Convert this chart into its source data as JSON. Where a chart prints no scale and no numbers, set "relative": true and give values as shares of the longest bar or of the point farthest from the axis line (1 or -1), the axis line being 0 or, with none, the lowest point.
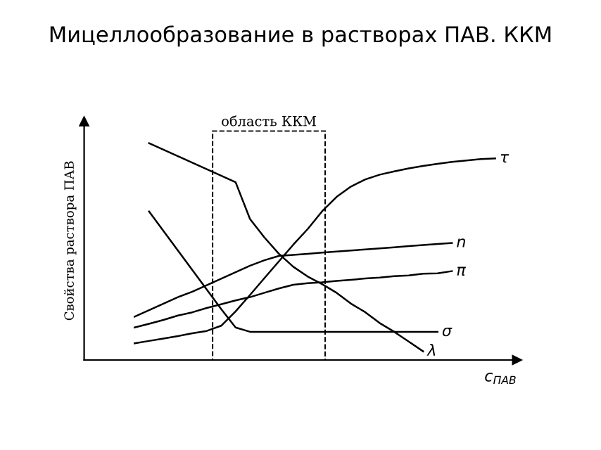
{
  "chart_data": {
    "type": "line",
    "title": "Мицеллообразование в растворах ПАВ. ККМ",
    "xlabel": "c$_{ПАВ}$",
    "ylabel": "Свойства раствора ПАВ",
    "relative": true,
    "categories": [
      null,
      null,
      null,
      null,
      null,
      null,
      null,
      null,
      null,
      null,
      null,
      null,
      null,
      null,
      null,
      null,
      null,
      null,
      null,
      null,
      null,
      null,
      null,
      null,
      null,
      null
    ],
    "series": [
      {
        "name": "τ",
        "color": "#000000",
        "values": [
          0.077,
          0.088,
          0.099,
          0.11,
          0.123,
          0.134,
          0.158,
          0.224,
          0.3,
          0.378,
          0.455,
          0.532,
          0.604,
          0.686,
          0.752,
          0.8,
          0.833,
          0.855,
          0.87,
          0.884,
          0.895,
          0.905,
          0.914,
          0.92,
          0.927,
          0.93
        ]
      },
      {
        "name": "n",
        "color": "#000000",
        "values": [
          0.2,
          0.23,
          0.26,
          0.29,
          0.315,
          0.345,
          0.375,
          0.405,
          0.435,
          0.46,
          0.48,
          0.485,
          0.49,
          0.495,
          0.5,
          0.505,
          0.51,
          0.515,
          0.52,
          0.525,
          0.53,
          0.535,
          0.54,
          null,
          null,
          null
        ]
      },
      {
        "name": "π",
        "color": "#000000",
        "values": [
          0.15,
          0.167,
          0.185,
          0.205,
          0.22,
          0.24,
          0.257,
          0.275,
          0.29,
          0.31,
          0.33,
          0.347,
          0.354,
          0.358,
          0.365,
          0.37,
          0.376,
          0.38,
          0.387,
          0.39,
          0.398,
          0.4,
          0.41,
          null,
          null,
          null
        ]
      },
      {
        "name": "λ",
        "color": "#000000",
        "values": [
          null,
          1.0,
          0.97,
          0.94,
          0.91,
          0.88,
          0.85,
          0.82,
          0.65,
          0.565,
          0.49,
          0.43,
          0.385,
          0.35,
          0.31,
          0.26,
          0.22,
          0.17,
          0.13,
          0.085,
          0.04,
          null,
          null,
          null,
          null,
          null
        ]
      },
      {
        "name": "σ",
        "color": "#000000",
        "values": [
          null,
          0.685,
          0.595,
          0.505,
          0.415,
          0.325,
          0.235,
          0.15,
          0.13,
          0.13,
          0.13,
          0.13,
          0.13,
          0.13,
          0.13,
          0.13,
          0.13,
          0.13,
          0.13,
          0.13,
          0.13,
          0.13,
          null,
          null,
          null,
          null
        ]
      }
    ],
    "annotations": [
      "область ККМ"
    ],
    "legend": false,
    "marker": "none",
    "line_style": "solid",
    "tick_labels": false
  }
}
